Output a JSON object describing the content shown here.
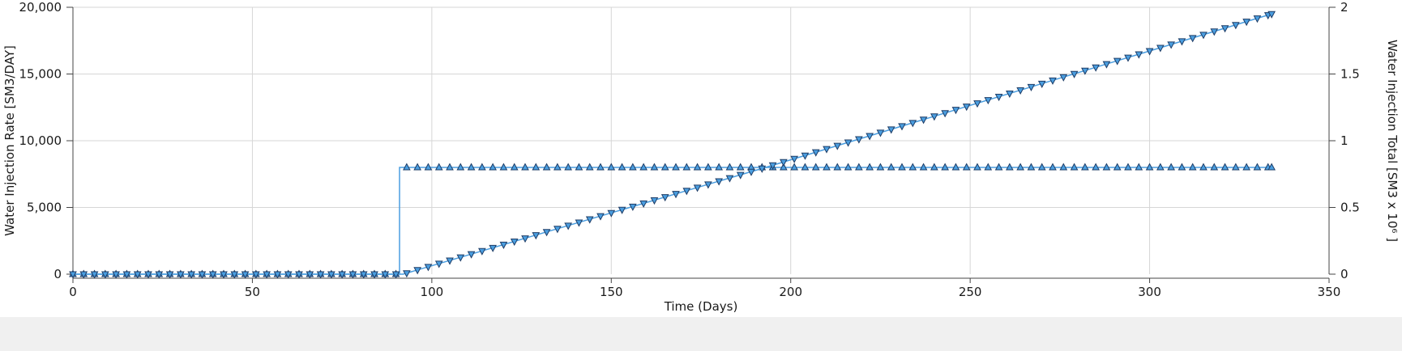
{
  "chart_data": {
    "type": "line",
    "xlabel": "Time (Days)",
    "ylabel_left": "Water Injection Rate [SM3/DAY]",
    "ylabel_right": "Water Injection Total [SM3 x 10⁶ ]",
    "xlim": [
      0,
      350
    ],
    "ylim_left": [
      0,
      20000
    ],
    "ylim_right": [
      0,
      2
    ],
    "x_ticks": [
      "0",
      "50",
      "100",
      "150",
      "200",
      "250",
      "300",
      "350"
    ],
    "y_ticks_left": [
      "0",
      "5,000",
      "10,000",
      "15,000",
      "20,000"
    ],
    "y_ticks_right": [
      "0",
      "0.5",
      "1",
      "1.5",
      "2"
    ],
    "grid": true,
    "legend": "none",
    "series": [
      {
        "axis": "left",
        "marker": "triangle-up",
        "step": true,
        "x": [
          0,
          91,
          91,
          334
        ],
        "y": [
          0,
          0,
          8000,
          8000
        ],
        "marker_step_days": 3
      },
      {
        "axis": "right",
        "marker": "triangle-down",
        "x": [
          0,
          92,
          193,
          334
        ],
        "y": [
          0,
          0,
          0.8,
          1.95
        ],
        "marker_step_days": 3
      }
    ],
    "colors": {
      "line": "#4a9ee0",
      "marker_fill": "#4a9ee0",
      "marker_edge": "#1f3d66",
      "grid": "#d6d6d6",
      "axis": "#444444"
    }
  }
}
